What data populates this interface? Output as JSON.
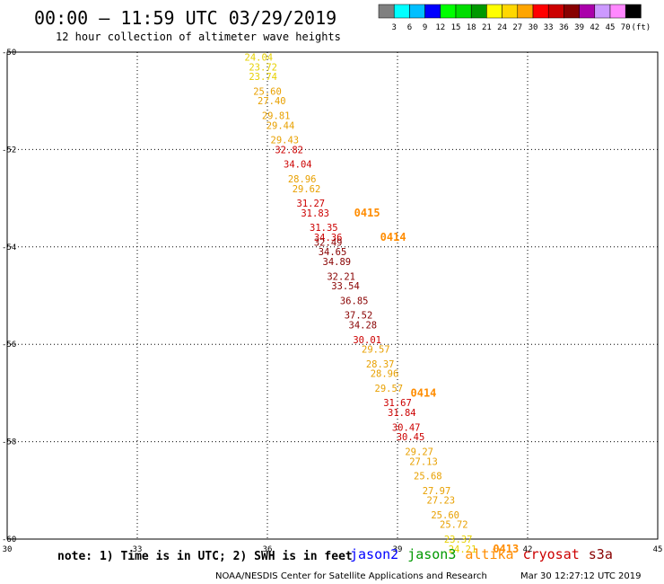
{
  "title": "00:00 – 11:59 UTC 03/29/2019",
  "subtitle": "12 hour collection of altimeter wave heights",
  "colorbar": {
    "colors": [
      "#808080",
      "#00ffff",
      "#00bfff",
      "#0000ff",
      "#00ff00",
      "#00dd00",
      "#009900",
      "#ffff00",
      "#ffd700",
      "#ffa500",
      "#ff0000",
      "#cc0000",
      "#880000",
      "#aa00aa",
      "#cc99ff",
      "#ff88ff",
      "#000000"
    ],
    "labels": [
      "3",
      "6",
      "9",
      "12",
      "15",
      "18",
      "21",
      "24",
      "27",
      "30",
      "33",
      "36",
      "39",
      "42",
      "45",
      "70",
      "(ft)"
    ]
  },
  "note": "note:  1) Time is in UTC;  2) SWH is in feet",
  "legend": [
    {
      "name": "jason2",
      "color": "#0000ff"
    },
    {
      "name": "jason3",
      "color": "#009900"
    },
    {
      "name": "altika",
      "color": "#ff8c00"
    },
    {
      "name": "cryosat",
      "color": "#cc0000"
    },
    {
      "name": "s3a",
      "color": "#880000"
    }
  ],
  "credit": "NOAA/NESDIS Center for Satellite Applications and Research",
  "timestamp": "Mar 30 12:27:12 UTC 2019",
  "chart_data": {
    "type": "scatter",
    "xlim": [
      30,
      45
    ],
    "ylim": [
      -60,
      -50
    ],
    "x_ticks": [
      "30",
      "33",
      "36",
      "39",
      "42",
      "45"
    ],
    "y_ticks": [
      "-50",
      "-52",
      "-54",
      "-56",
      "-58",
      "-60"
    ],
    "grid": true,
    "points": [
      {
        "lon": 35.8,
        "lat": -50.1,
        "value": "24.04",
        "color": "#e6d000"
      },
      {
        "lon": 35.9,
        "lat": -50.3,
        "value": "23.72",
        "color": "#e6d000"
      },
      {
        "lon": 35.9,
        "lat": -50.5,
        "value": "23.74",
        "color": "#e6d000"
      },
      {
        "lon": 36.0,
        "lat": -50.8,
        "value": "25.60",
        "color": "#e8a000"
      },
      {
        "lon": 36.1,
        "lat": -51.0,
        "value": "27.40",
        "color": "#e8a000"
      },
      {
        "lon": 36.2,
        "lat": -51.3,
        "value": "29.81",
        "color": "#e8a000"
      },
      {
        "lon": 36.3,
        "lat": -51.5,
        "value": "29.44",
        "color": "#e8a000"
      },
      {
        "lon": 36.4,
        "lat": -51.8,
        "value": "29.43",
        "color": "#e8a000"
      },
      {
        "lon": 36.5,
        "lat": -52.0,
        "value": "32.82",
        "color": "#cc0000"
      },
      {
        "lon": 36.7,
        "lat": -52.3,
        "value": "34.04",
        "color": "#cc0000"
      },
      {
        "lon": 36.8,
        "lat": -52.6,
        "value": "28.96",
        "color": "#e8a000"
      },
      {
        "lon": 36.9,
        "lat": -52.8,
        "value": "29.62",
        "color": "#e8a000"
      },
      {
        "lon": 37.0,
        "lat": -53.1,
        "value": "31.27",
        "color": "#cc0000"
      },
      {
        "lon": 37.1,
        "lat": -53.3,
        "value": "31.83",
        "color": "#cc0000"
      },
      {
        "lon": 37.3,
        "lat": -53.6,
        "value": "31.35",
        "color": "#cc0000"
      },
      {
        "lon": 37.4,
        "lat": -53.8,
        "value": "34.36",
        "color": "#cc0000"
      },
      {
        "lon": 37.4,
        "lat": -53.9,
        "value": "32.49",
        "color": "#880000"
      },
      {
        "lon": 37.5,
        "lat": -54.1,
        "value": "34.65",
        "color": "#880000"
      },
      {
        "lon": 37.6,
        "lat": -54.3,
        "value": "34.89",
        "color": "#880000"
      },
      {
        "lon": 37.7,
        "lat": -54.6,
        "value": "32.21",
        "color": "#880000"
      },
      {
        "lon": 37.8,
        "lat": -54.8,
        "value": "33.54",
        "color": "#880000"
      },
      {
        "lon": 38.0,
        "lat": -55.1,
        "value": "36.85",
        "color": "#880000"
      },
      {
        "lon": 38.1,
        "lat": -55.4,
        "value": "37.52",
        "color": "#880000"
      },
      {
        "lon": 38.2,
        "lat": -55.6,
        "value": "34.28",
        "color": "#880000"
      },
      {
        "lon": 38.3,
        "lat": -55.9,
        "value": "30.01",
        "color": "#cc0000"
      },
      {
        "lon": 38.5,
        "lat": -56.1,
        "value": "29.57",
        "color": "#e8a000"
      },
      {
        "lon": 38.6,
        "lat": -56.4,
        "value": "28.37",
        "color": "#e8a000"
      },
      {
        "lon": 38.7,
        "lat": -56.6,
        "value": "28.96",
        "color": "#e8a000"
      },
      {
        "lon": 38.8,
        "lat": -56.9,
        "value": "29.57",
        "color": "#e8a000"
      },
      {
        "lon": 39.0,
        "lat": -57.2,
        "value": "31.67",
        "color": "#cc0000"
      },
      {
        "lon": 39.1,
        "lat": -57.4,
        "value": "31.84",
        "color": "#cc0000"
      },
      {
        "lon": 39.2,
        "lat": -57.7,
        "value": "30.47",
        "color": "#cc0000"
      },
      {
        "lon": 39.3,
        "lat": -57.9,
        "value": "30.45",
        "color": "#cc0000"
      },
      {
        "lon": 39.5,
        "lat": -58.2,
        "value": "29.27",
        "color": "#e8a000"
      },
      {
        "lon": 39.6,
        "lat": -58.4,
        "value": "27.13",
        "color": "#e8a000"
      },
      {
        "lon": 39.7,
        "lat": -58.7,
        "value": "25.68",
        "color": "#e8a000"
      },
      {
        "lon": 39.9,
        "lat": -59.0,
        "value": "27.97",
        "color": "#e8a000"
      },
      {
        "lon": 40.0,
        "lat": -59.2,
        "value": "27.23",
        "color": "#e8a000"
      },
      {
        "lon": 40.1,
        "lat": -59.5,
        "value": "25.60",
        "color": "#e8a000"
      },
      {
        "lon": 40.3,
        "lat": -59.7,
        "value": "25.72",
        "color": "#e8a000"
      },
      {
        "lon": 40.4,
        "lat": -60.0,
        "value": "23.37",
        "color": "#e6d000"
      },
      {
        "lon": 40.5,
        "lat": -60.2,
        "value": "24.21",
        "color": "#e6d000"
      }
    ],
    "time_labels": [
      {
        "lon": 38.0,
        "lat": -53.3,
        "text": "0415",
        "color": "#ff8c00"
      },
      {
        "lon": 38.6,
        "lat": -53.8,
        "text": "0414",
        "color": "#ff8c00"
      },
      {
        "lon": 39.3,
        "lat": -57.0,
        "text": "0414",
        "color": "#ff8c00"
      },
      {
        "lon": 41.2,
        "lat": -60.2,
        "text": "0413",
        "color": "#ff8c00"
      }
    ]
  }
}
